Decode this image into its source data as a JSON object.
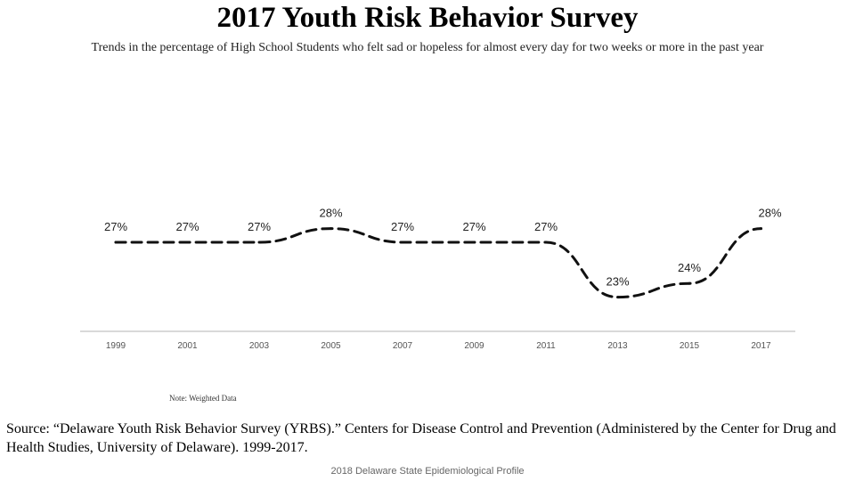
{
  "page": {
    "title": "2017 Youth Risk Behavior Survey",
    "subtitle": "Trends in the percentage of High School Students who felt sad or hopeless for almost every day for two weeks or more in the past year",
    "note": "Note: Weighted Data",
    "source": "Source: “Delaware Youth Risk Behavior Survey (YRBS).” Centers for Disease Control and Prevention (Administered by the Center for Drug and Health Studies, University of Delaware). 1999-2017.",
    "footer": "2018 Delaware State Epidemiological Profile"
  },
  "colors": {
    "line": "#111111",
    "baseline": "#d9d9d9",
    "tick_label": "#555555"
  },
  "chart_data": {
    "type": "line",
    "categories": [
      "1999",
      "2001",
      "2003",
      "2005",
      "2007",
      "2009",
      "2011",
      "2013",
      "2015",
      "2017"
    ],
    "values": [
      27,
      27,
      27,
      28,
      27,
      27,
      27,
      23,
      24,
      28
    ],
    "data_labels": [
      "27%",
      "27%",
      "27%",
      "28%",
      "27%",
      "27%",
      "27%",
      "23%",
      "24%",
      "28%"
    ],
    "line_style": "dashed",
    "grid": false,
    "legend": "none"
  }
}
